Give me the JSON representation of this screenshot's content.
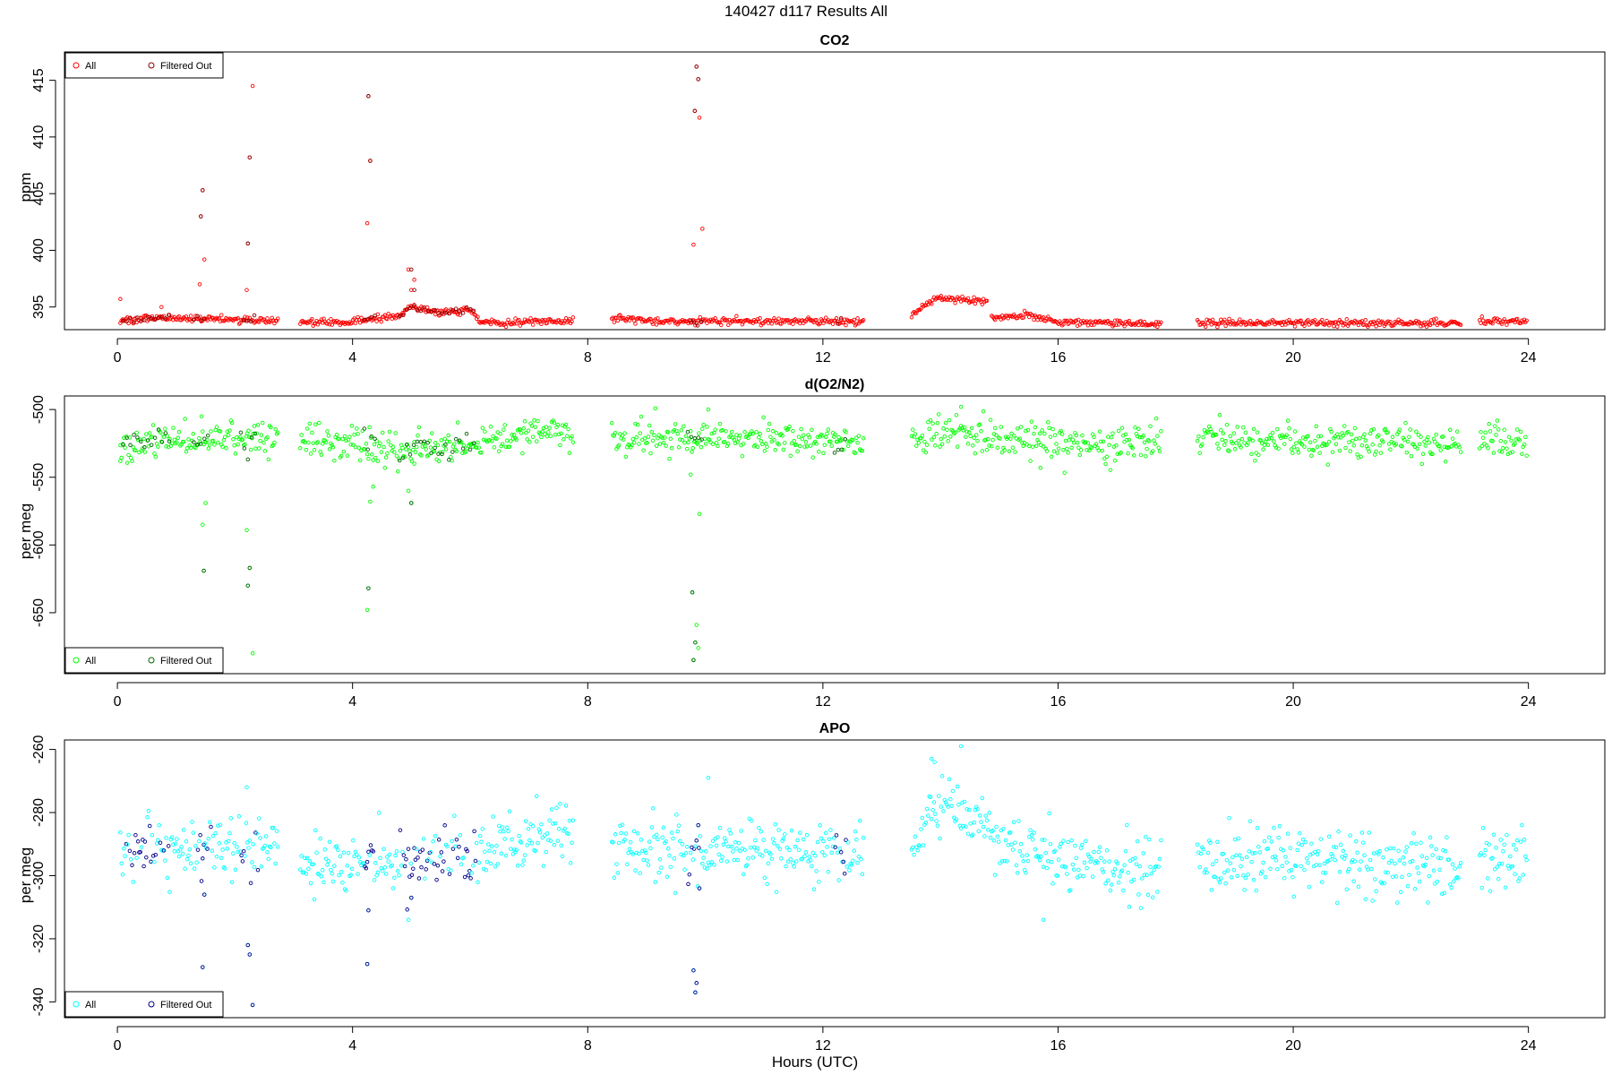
{
  "figure": {
    "title": "140427   d117   Results All",
    "xlabel": "Hours (UTC)"
  },
  "chart_data": [
    {
      "type": "scatter",
      "title": "CO2",
      "ylabel": "ppm",
      "xlim": [
        -0.9,
        25.3
      ],
      "ylim": [
        393,
        417.5
      ],
      "x_ticks": [
        0,
        4,
        8,
        12,
        16,
        20,
        24
      ],
      "y_ticks": [
        395,
        400,
        405,
        410,
        415
      ],
      "legend_position": "top-left",
      "gaps": [
        [
          2.75,
          3.1
        ],
        [
          7.75,
          8.4
        ],
        [
          12.7,
          13.5
        ],
        [
          14.8,
          14.85
        ],
        [
          17.75,
          18.35
        ],
        [
          22.85,
          23.15
        ]
      ],
      "series": [
        {
          "name": "All",
          "color": "#ff0000",
          "baseline": [
            [
              0,
              393.8
            ],
            [
              0.7,
              394.0
            ],
            [
              1.5,
              394.0
            ],
            [
              2.4,
              393.8
            ],
            [
              2.7,
              393.8
            ],
            [
              3.1,
              393.7
            ],
            [
              4.0,
              393.6
            ],
            [
              4.3,
              394.0
            ],
            [
              4.8,
              394.2
            ],
            [
              5.0,
              395.0
            ],
            [
              5.5,
              394.5
            ],
            [
              6.0,
              394.8
            ],
            [
              6.2,
              393.6
            ],
            [
              7.75,
              393.8
            ],
            [
              8.4,
              394.0
            ],
            [
              9.0,
              393.8
            ],
            [
              9.8,
              393.7
            ],
            [
              10.0,
              393.8
            ],
            [
              12.7,
              393.7
            ],
            [
              13.5,
              394.2
            ],
            [
              13.9,
              395.8
            ],
            [
              14.4,
              395.6
            ],
            [
              14.8,
              395.5
            ],
            [
              14.85,
              394.0
            ],
            [
              15.5,
              394.2
            ],
            [
              16.0,
              393.7
            ],
            [
              17.75,
              393.5
            ],
            [
              18.35,
              393.6
            ],
            [
              22.85,
              393.6
            ],
            [
              23.15,
              393.7
            ],
            [
              24,
              393.8
            ]
          ],
          "noise": 0.15,
          "outliers_x": [
            0.05,
            0.75,
            1.4,
            1.42,
            1.45,
            1.48,
            2.2,
            2.22,
            2.25,
            2.3,
            4.25,
            4.27,
            4.3,
            4.95,
            5.0,
            5.05,
            9.8,
            9.82,
            9.85,
            9.88,
            9.9,
            9.95
          ],
          "outliers_y": [
            395.7,
            395.0,
            397.0,
            403.0,
            405.3,
            399.2,
            396.5,
            400.6,
            408.2,
            414.5,
            402.4,
            413.6,
            407.9,
            398.3,
            396.5,
            397.4,
            400.5,
            412.3,
            416.2,
            415.1,
            411.7,
            401.9
          ]
        },
        {
          "name": "Filtered Out",
          "color": "#8b0000",
          "windows": [
            [
              0.1,
              0.9
            ],
            [
              1.3,
              1.5
            ],
            [
              2.15,
              2.35
            ],
            [
              4.2,
              4.4
            ],
            [
              4.8,
              6.1
            ],
            [
              9.75,
              9.95
            ],
            [
              12.25,
              12.35
            ]
          ],
          "filter_mode": "outliers",
          "outliers_x": [
            1.42,
            1.45,
            2.22,
            2.25,
            4.27,
            4.3,
            5.0,
            5.05,
            9.82,
            9.85,
            9.88
          ],
          "outliers_y": [
            403.0,
            405.3,
            400.6,
            408.2,
            413.6,
            407.9,
            398.3,
            396.5,
            412.3,
            416.2,
            415.1
          ]
        }
      ]
    },
    {
      "type": "scatter",
      "title": "d(O2/N2)",
      "ylabel": "per meg",
      "xlim": [
        -0.9,
        25.3
      ],
      "ylim": [
        -695,
        -490
      ],
      "x_ticks": [
        0,
        4,
        8,
        12,
        16,
        20,
        24
      ],
      "y_ticks": [
        -650,
        -600,
        -550,
        -500
      ],
      "legend_position": "bottom-left",
      "gaps": [
        [
          2.75,
          3.1
        ],
        [
          7.75,
          8.4
        ],
        [
          12.7,
          13.5
        ],
        [
          17.75,
          18.35
        ],
        [
          22.85,
          23.15
        ]
      ],
      "series": [
        {
          "name": "All",
          "color": "#00ff00",
          "baseline": [
            [
              0,
              -525
            ],
            [
              1.5,
              -522
            ],
            [
              2.7,
              -522
            ],
            [
              3.1,
              -522
            ],
            [
              4.0,
              -525
            ],
            [
              5.0,
              -530
            ],
            [
              6.0,
              -525
            ],
            [
              7.0,
              -518
            ],
            [
              7.75,
              -515
            ],
            [
              8.4,
              -522
            ],
            [
              10.0,
              -520
            ],
            [
              12.7,
              -525
            ],
            [
              13.5,
              -525
            ],
            [
              14.2,
              -515
            ],
            [
              15.0,
              -522
            ],
            [
              16.0,
              -525
            ],
            [
              17.75,
              -525
            ],
            [
              18.35,
              -522
            ],
            [
              22.85,
              -525
            ],
            [
              23.15,
              -522
            ],
            [
              24,
              -525
            ]
          ],
          "noise": 6,
          "outliers_x": [
            0.05,
            1.45,
            1.47,
            1.5,
            2.2,
            2.22,
            2.25,
            2.3,
            4.25,
            4.27,
            4.3,
            4.35,
            4.95,
            5.0,
            5.05,
            9.75,
            9.78,
            9.8,
            9.83,
            9.85,
            9.88,
            9.9,
            10.05,
            14.35,
            15.7
          ],
          "outliers_y": [
            -538,
            -585,
            -619,
            -569,
            -589,
            -630,
            -617,
            -680,
            -648,
            -632,
            -568,
            -557,
            -560,
            -569,
            -540,
            -548,
            -635,
            -685,
            -672,
            -659,
            -676,
            -577,
            -500,
            -498,
            -543
          ]
        },
        {
          "name": "Filtered Out",
          "color": "#006400",
          "windows": [
            [
              0.1,
              0.9
            ],
            [
              1.3,
              1.6
            ],
            [
              2.1,
              2.4
            ],
            [
              4.2,
              4.4
            ],
            [
              4.8,
              6.1
            ],
            [
              9.7,
              9.95
            ],
            [
              12.2,
              12.4
            ]
          ],
          "filter_mode": "outliers",
          "outliers_x": [
            1.47,
            2.22,
            2.25,
            4.27,
            5.0,
            9.78,
            9.8,
            9.83
          ],
          "outliers_y": [
            -619,
            -630,
            -617,
            -632,
            -569,
            -635,
            -685,
            -672
          ]
        }
      ]
    },
    {
      "type": "scatter",
      "title": "APO",
      "ylabel": "per meg",
      "xlim": [
        -0.9,
        25.3
      ],
      "ylim": [
        -345,
        -257
      ],
      "x_ticks": [
        0,
        4,
        8,
        12,
        16,
        20,
        24
      ],
      "y_ticks": [
        -340,
        -320,
        -300,
        -280,
        -260
      ],
      "legend_position": "bottom-left",
      "gaps": [
        [
          2.75,
          3.1
        ],
        [
          7.75,
          8.4
        ],
        [
          12.7,
          13.5
        ],
        [
          17.75,
          18.35
        ],
        [
          22.85,
          23.15
        ]
      ],
      "series": [
        {
          "name": "All",
          "color": "#00ffff",
          "baseline": [
            [
              0,
              -293
            ],
            [
              1.5,
              -290
            ],
            [
              2.7,
              -291
            ],
            [
              3.1,
              -295
            ],
            [
              4.0,
              -296
            ],
            [
              5.0,
              -296
            ],
            [
              6.0,
              -292
            ],
            [
              7.0,
              -288
            ],
            [
              7.75,
              -287
            ],
            [
              8.4,
              -292
            ],
            [
              10.0,
              -291
            ],
            [
              12.7,
              -291
            ],
            [
              13.5,
              -294
            ],
            [
              14.0,
              -278
            ],
            [
              14.6,
              -281
            ],
            [
              15.0,
              -290
            ],
            [
              16.0,
              -296
            ],
            [
              17.75,
              -298
            ],
            [
              18.35,
              -294
            ],
            [
              22.85,
              -297
            ],
            [
              23.15,
              -293
            ],
            [
              24,
              -297
            ]
          ],
          "noise": 5,
          "outliers_x": [
            1.45,
            1.48,
            2.2,
            2.22,
            2.25,
            2.3,
            4.25,
            4.27,
            4.95,
            5.0,
            9.8,
            9.83,
            9.85,
            9.88,
            9.9,
            10.05,
            13.85,
            13.9,
            14.35,
            15.75
          ],
          "outliers_y": [
            -329,
            -306,
            -272,
            -322,
            -325,
            -341,
            -328,
            -311,
            -314,
            -307,
            -330,
            -337,
            -334,
            -284,
            -304,
            -269,
            -263,
            -264,
            -259,
            -314
          ]
        },
        {
          "name": "Filtered Out",
          "color": "#00008b",
          "windows": [
            [
              0.1,
              0.9
            ],
            [
              1.3,
              1.6
            ],
            [
              2.1,
              2.4
            ],
            [
              4.2,
              4.4
            ],
            [
              4.8,
              6.1
            ],
            [
              9.7,
              9.95
            ],
            [
              12.2,
              12.4
            ]
          ],
          "filter_mode": "all",
          "outliers_x": [
            1.45,
            1.48,
            2.22,
            2.25,
            2.3,
            4.25,
            4.27,
            5.0,
            9.8,
            9.83,
            9.85,
            9.88,
            9.9
          ],
          "outliers_y": [
            -329,
            -306,
            -322,
            -325,
            -341,
            -328,
            -311,
            -307,
            -330,
            -337,
            -334,
            -284,
            -304
          ]
        }
      ]
    }
  ]
}
